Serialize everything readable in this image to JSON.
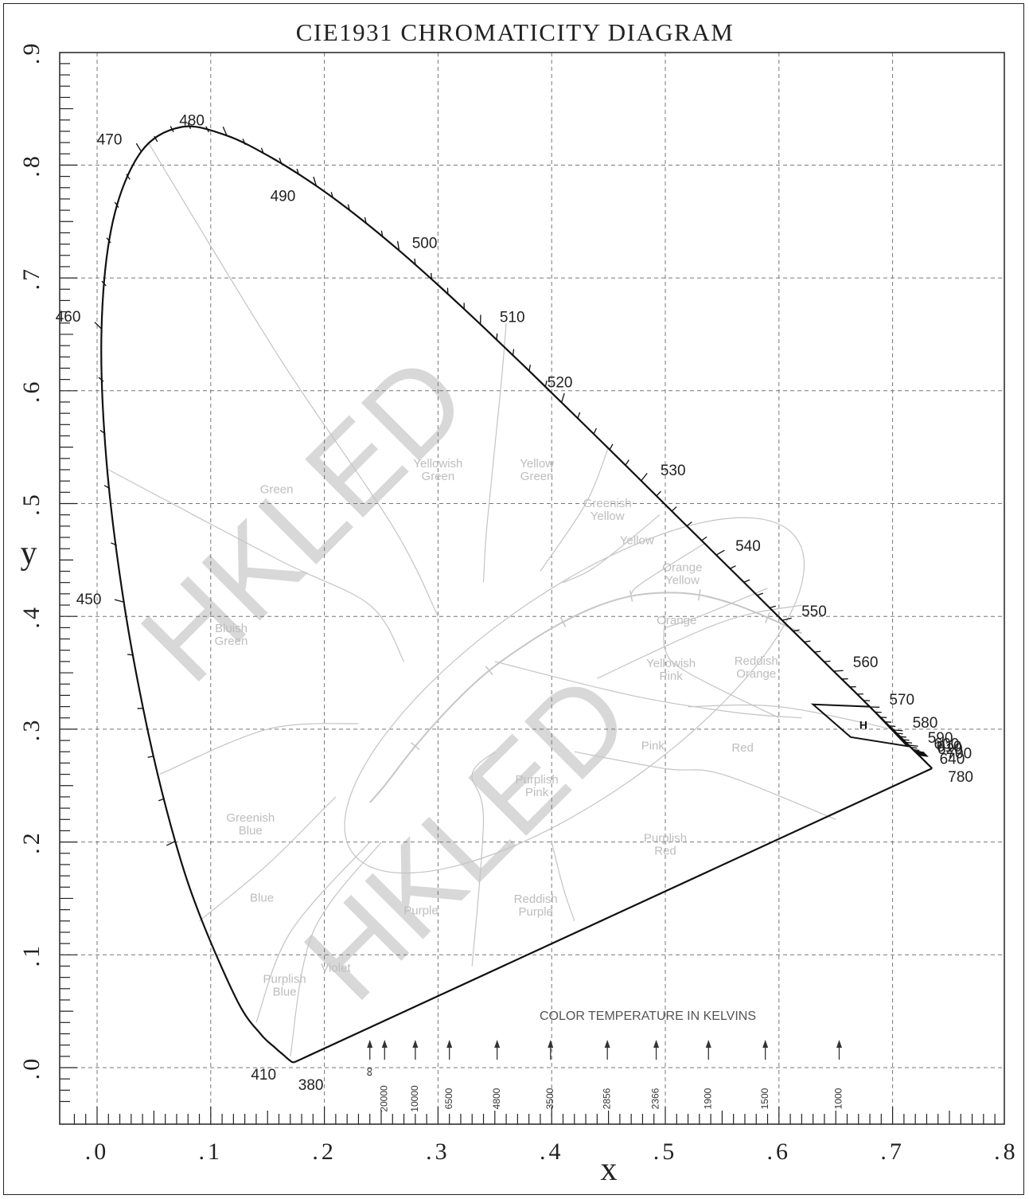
{
  "chart_data": {
    "type": "scatter",
    "title": "CIE1931 CHROMATICITY DIAGRAM",
    "xlabel": "x",
    "ylabel": "y",
    "xlim": [
      -0.03,
      0.8
    ],
    "ylim": [
      -0.04,
      0.9
    ],
    "grid": true,
    "x_tick_labels": [
      ".0",
      ".1",
      ".2",
      ".3",
      ".4",
      ".5",
      ".6",
      ".7",
      ".8"
    ],
    "x_ticks": [
      0,
      0.1,
      0.2,
      0.3,
      0.4,
      0.5,
      0.6,
      0.7,
      0.8
    ],
    "y_tick_labels": [
      ".0",
      ".1",
      ".2",
      ".3",
      ".4",
      ".5",
      ".6",
      ".7",
      ".8",
      ".9"
    ],
    "y_ticks": [
      0,
      0.1,
      0.2,
      0.3,
      0.4,
      0.5,
      0.6,
      0.7,
      0.8,
      0.9
    ],
    "spectral_locus": {
      "x": [
        0.1741,
        0.1738,
        0.1736,
        0.1733,
        0.1726,
        0.1714,
        0.1689,
        0.1644,
        0.1566,
        0.144,
        0.1241,
        0.0913,
        0.0687,
        0.0454,
        0.0235,
        0.0082,
        0.0039,
        0.0139,
        0.0389,
        0.0743,
        0.1142,
        0.1547,
        0.1929,
        0.2296,
        0.2658,
        0.3016,
        0.3373,
        0.3731,
        0.4087,
        0.4441,
        0.4788,
        0.5125,
        0.5448,
        0.5752,
        0.6029,
        0.627,
        0.6482,
        0.6658,
        0.6801,
        0.6915,
        0.7006,
        0.7079,
        0.714,
        0.719,
        0.723,
        0.726,
        0.7283,
        0.73,
        0.7311,
        0.732,
        0.7347
      ],
      "y": [
        0.005,
        0.0049,
        0.0049,
        0.0048,
        0.0048,
        0.0051,
        0.0069,
        0.0109,
        0.0177,
        0.0297,
        0.0578,
        0.1327,
        0.2007,
        0.295,
        0.4127,
        0.5384,
        0.6548,
        0.7502,
        0.812,
        0.8338,
        0.8262,
        0.8059,
        0.7816,
        0.7543,
        0.7243,
        0.6923,
        0.6589,
        0.6245,
        0.5896,
        0.5547,
        0.5202,
        0.4866,
        0.4544,
        0.4242,
        0.3965,
        0.3725,
        0.3514,
        0.334,
        0.3197,
        0.3083,
        0.2993,
        0.292,
        0.2859,
        0.2809,
        0.277,
        0.274,
        0.2717,
        0.27,
        0.2689,
        0.268,
        0.2653
      ]
    },
    "wavelength_labels": [
      {
        "text": "380",
        "nm": 380
      },
      {
        "text": "410",
        "nm": 410
      },
      {
        "text": "450",
        "nm": 450
      },
      {
        "text": "460",
        "nm": 460
      },
      {
        "text": "470",
        "nm": 470
      },
      {
        "text": "480",
        "nm": 480
      },
      {
        "text": "490",
        "nm": 490
      },
      {
        "text": "500",
        "nm": 500
      },
      {
        "text": "510",
        "nm": 510
      },
      {
        "text": "520",
        "nm": 520
      },
      {
        "text": "530",
        "nm": 530
      },
      {
        "text": "540",
        "nm": 540
      },
      {
        "text": "550",
        "nm": 550
      },
      {
        "text": "560",
        "nm": 560
      },
      {
        "text": "570",
        "nm": 570
      },
      {
        "text": "580",
        "nm": 580
      },
      {
        "text": "590",
        "nm": 590
      },
      {
        "text": "600",
        "nm": 600
      },
      {
        "text": "610",
        "nm": 610
      },
      {
        "text": "620",
        "nm": 620
      },
      {
        "text": "640",
        "nm": 640
      },
      {
        "text": "700",
        "nm": 700
      },
      {
        "text": "780",
        "nm": 780
      }
    ],
    "planckian_locus": {
      "x": [
        0.24,
        0.253,
        0.28,
        0.314,
        0.345,
        0.38,
        0.41,
        0.44,
        0.47,
        0.5,
        0.53,
        0.56,
        0.59,
        0.62
      ],
      "y": [
        0.235,
        0.25,
        0.285,
        0.323,
        0.352,
        0.377,
        0.395,
        0.409,
        0.418,
        0.421,
        0.419,
        0.411,
        0.399,
        0.385
      ]
    },
    "color_regions": [
      {
        "name": "Green",
        "x": 0.158,
        "y": 0.509
      },
      {
        "name": "Yellowish\nGreen",
        "x": 0.3,
        "y": 0.532
      },
      {
        "name": "Yellow\nGreen",
        "x": 0.387,
        "y": 0.532
      },
      {
        "name": "Greenish\nYellow",
        "x": 0.449,
        "y": 0.497
      },
      {
        "name": "Yellow",
        "x": 0.475,
        "y": 0.464
      },
      {
        "name": "Orange\nYellow",
        "x": 0.515,
        "y": 0.44
      },
      {
        "name": "Orange",
        "x": 0.51,
        "y": 0.393
      },
      {
        "name": "Bluish\nGreen",
        "x": 0.118,
        "y": 0.386
      },
      {
        "name": "Yellowish\nPink",
        "x": 0.505,
        "y": 0.355
      },
      {
        "name": "Reddish\nOrange",
        "x": 0.58,
        "y": 0.357
      },
      {
        "name": "Pink",
        "x": 0.489,
        "y": 0.282
      },
      {
        "name": "Red",
        "x": 0.568,
        "y": 0.28
      },
      {
        "name": "Purplish\nPink",
        "x": 0.387,
        "y": 0.252
      },
      {
        "name": "Greenish\nBlue",
        "x": 0.135,
        "y": 0.218
      },
      {
        "name": "Purplish\nRed",
        "x": 0.5,
        "y": 0.2
      },
      {
        "name": "Blue",
        "x": 0.145,
        "y": 0.147
      },
      {
        "name": "Purple",
        "x": 0.285,
        "y": 0.136
      },
      {
        "name": "Reddish\nPurple",
        "x": 0.386,
        "y": 0.146
      },
      {
        "name": "Violet",
        "x": 0.21,
        "y": 0.085
      },
      {
        "name": "Purplish\nBlue",
        "x": 0.165,
        "y": 0.075
      }
    ],
    "h_region": {
      "label": "H",
      "x": [
        0.63,
        0.68,
        0.713,
        0.663
      ],
      "y": [
        0.322,
        0.32,
        0.285,
        0.293
      ]
    },
    "color_temperature": {
      "caption": "COLOR TEMPERATURE IN KELVINS",
      "markers": [
        {
          "label": "∞",
          "x": 0.24
        },
        {
          "label": "20000",
          "x": 0.253
        },
        {
          "label": "10000",
          "x": 0.28
        },
        {
          "label": "6500",
          "x": 0.31
        },
        {
          "label": "4800",
          "x": 0.352
        },
        {
          "label": "3500",
          "x": 0.399
        },
        {
          "label": "2856",
          "x": 0.449
        },
        {
          "label": "2366",
          "x": 0.492
        },
        {
          "label": "1900",
          "x": 0.538
        },
        {
          "label": "1500",
          "x": 0.588
        },
        {
          "label": "1000",
          "x": 0.653
        }
      ]
    },
    "watermark": "HKLED"
  }
}
